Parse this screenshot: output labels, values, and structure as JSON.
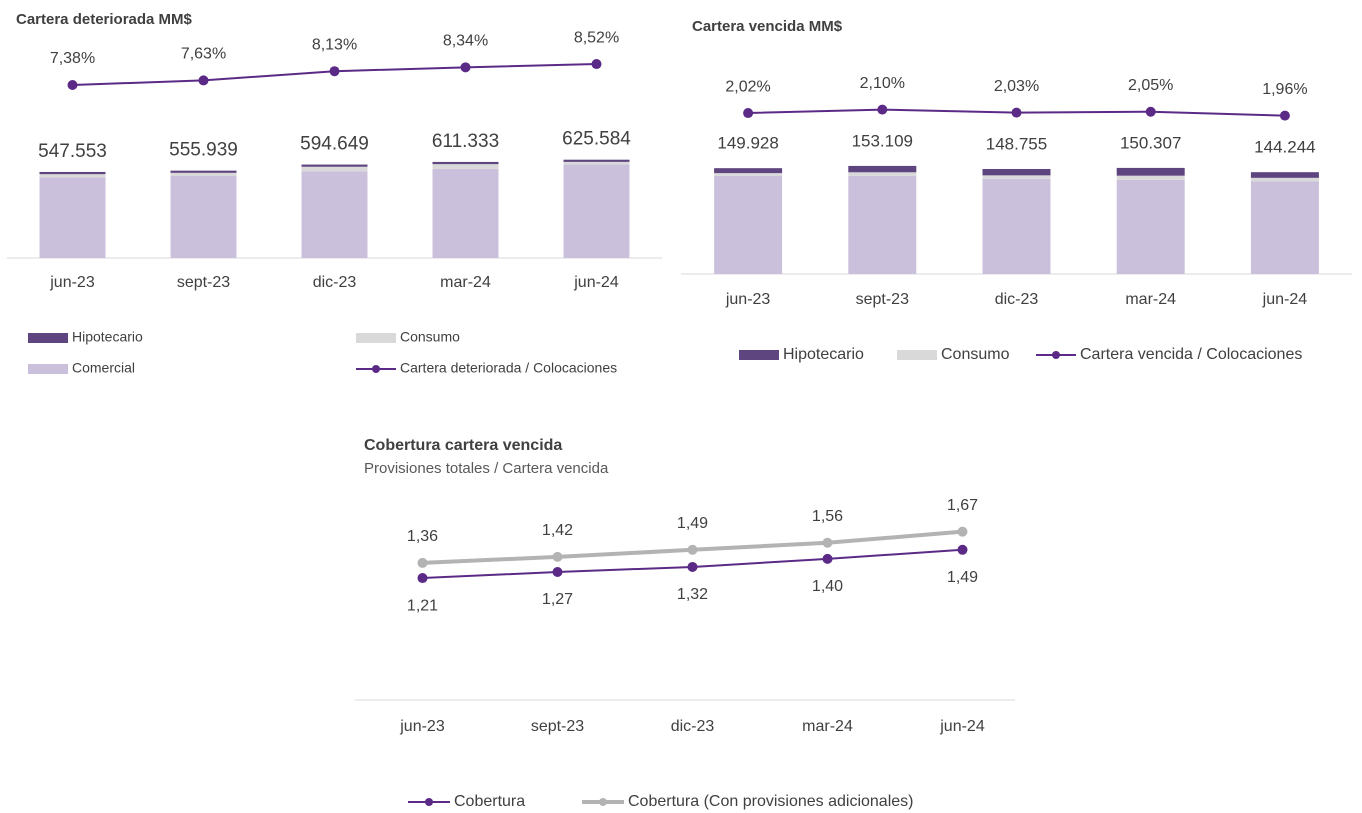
{
  "chart_data": [
    {
      "type": "bar",
      "stacked": true,
      "title": "Cartera deteriorada MM$",
      "categories": [
        "jun-23",
        "sept-23",
        "dic-23",
        "mar-24",
        "jun-24"
      ],
      "series": [
        {
          "name": "Comercial",
          "color": "#cbc0dc",
          "values": [
            513553,
            521939,
            550649,
            567333,
            595584
          ]
        },
        {
          "name": "Consumo",
          "color": "#d9d9d9",
          "values": [
            20000,
            20000,
            30000,
            30000,
            16000
          ]
        },
        {
          "name": "Hipotecario",
          "color": "#5f4580",
          "values": [
            14000,
            14000,
            14000,
            14000,
            14000
          ]
        },
        {
          "name": "Cartera deteriorada / Colocaciones",
          "type": "line",
          "axis": "y2",
          "color": "#5b2a86",
          "values": [
            7.38,
            7.63,
            8.13,
            8.34,
            8.52
          ],
          "value_labels": [
            "7,38%",
            "7,63%",
            "8,13%",
            "8,34%",
            "8,52%"
          ]
        }
      ],
      "totals": {
        "values": [
          547553,
          555939,
          594649,
          611333,
          625584
        ],
        "value_labels": [
          "547.553",
          "555.939",
          "594.649",
          "611.333",
          "625.584"
        ]
      },
      "ylim": [
        0,
        700000
      ],
      "y2lim": [
        0,
        10
      ]
    },
    {
      "type": "bar",
      "stacked": true,
      "title": "Cartera vencida MM$",
      "categories": [
        "jun-23",
        "sept-23",
        "dic-23",
        "mar-24",
        "jun-24"
      ],
      "series": [
        {
          "color": "#cbc0dc",
          "values": [
            138928,
            139109,
            134755,
            133307,
            131244
          ]
        },
        {
          "name": "Consumo",
          "color": "#d9d9d9",
          "values": [
            4000,
            5000,
            5000,
            6000,
            5000
          ]
        },
        {
          "name": "Hipotecario",
          "color": "#5f4580",
          "values": [
            7000,
            9000,
            9000,
            11000,
            8000
          ]
        },
        {
          "name": "Cartera vencida / Colocaciones",
          "type": "line",
          "axis": "y2",
          "color": "#5b2a86",
          "values": [
            2.02,
            2.1,
            2.03,
            2.05,
            1.96
          ],
          "value_labels": [
            "2,02%",
            "2,10%",
            "2,03%",
            "2,05%",
            "1,96%"
          ]
        }
      ],
      "totals": {
        "values": [
          149928,
          153109,
          148755,
          150307,
          144244
        ],
        "value_labels": [
          "149.928",
          "153.109",
          "148.755",
          "150.307",
          "144.244"
        ]
      },
      "ylim": [
        0,
        170000
      ],
      "y2lim": [
        1.5,
        2.5
      ]
    },
    {
      "type": "line",
      "title": "Cobertura cartera vencida",
      "subtitle": "Provisiones totales / Cartera vencida",
      "categories": [
        "jun-23",
        "sept-23",
        "dic-23",
        "mar-24",
        "jun-24"
      ],
      "series": [
        {
          "name": "Cobertura",
          "color": "#5b2a86",
          "values": [
            1.21,
            1.27,
            1.32,
            1.4,
            1.49
          ],
          "value_labels": [
            "1,21",
            "1,27",
            "1,32",
            "1,40",
            "1,49"
          ]
        },
        {
          "name": "Cobertura (Con provisiones adicionales)",
          "color": "#b3b3b3",
          "values": [
            1.36,
            1.42,
            1.49,
            1.56,
            1.67
          ],
          "value_labels": [
            "1,36",
            "1,42",
            "1,49",
            "1,56",
            "1,67"
          ]
        }
      ],
      "ylim": [
        0,
        2
      ]
    }
  ]
}
